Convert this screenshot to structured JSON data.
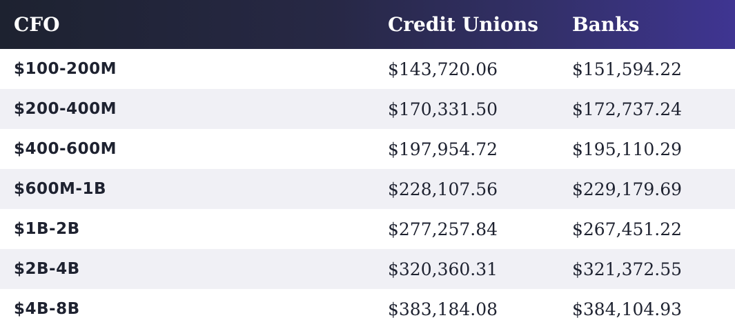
{
  "table": {
    "headers": [
      "CFO",
      "Credit Unions",
      "Banks"
    ],
    "rows": [
      {
        "range": "$100-200M",
        "credit_unions": "$143,720.06",
        "banks": "$151,594.22"
      },
      {
        "range": "$200-400M",
        "credit_unions": "$170,331.50",
        "banks": "$172,737.24"
      },
      {
        "range": "$400-600M",
        "credit_unions": "$197,954.72",
        "banks": "$195,110.29"
      },
      {
        "range": "$600M-1B",
        "credit_unions": "$228,107.56",
        "banks": "$229,179.69"
      },
      {
        "range": "$1B-2B",
        "credit_unions": "$277,257.84",
        "banks": "$267,451.22"
      },
      {
        "range": "$2B-4B",
        "credit_unions": "$320,360.31",
        "banks": "$321,372.55"
      },
      {
        "range": "$4B-8B",
        "credit_unions": "$383,184.08",
        "banks": "$384,104.93"
      }
    ]
  },
  "colors": {
    "header_gradient_start": "#1d2230",
    "header_gradient_end": "#3f3592",
    "row_alt": "#f0f0f5",
    "text": "#1e2230"
  }
}
